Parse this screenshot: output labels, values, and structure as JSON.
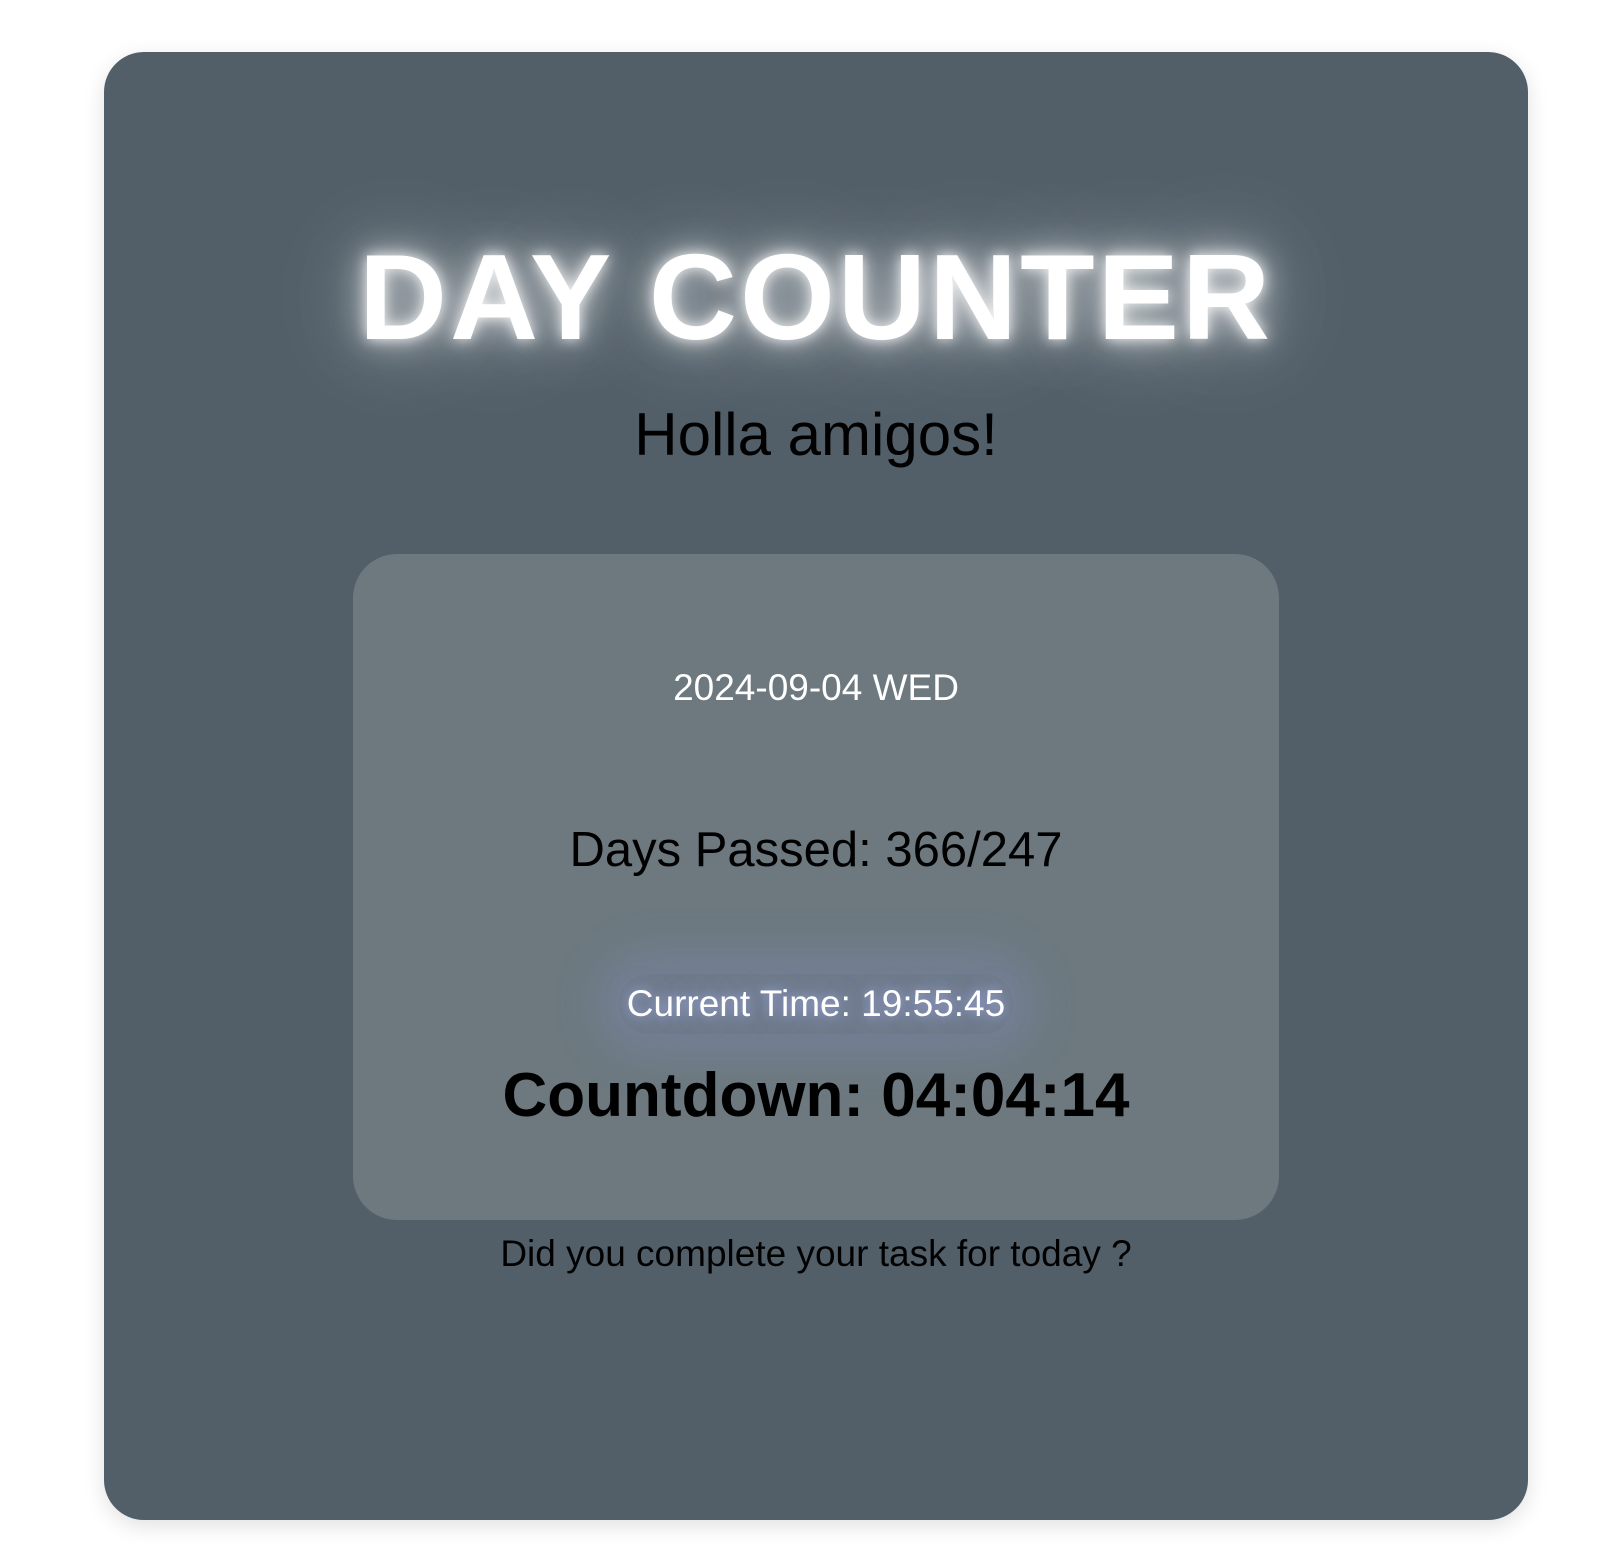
{
  "header": {
    "title": "DAY COUNTER",
    "greeting": "Holla amigos!"
  },
  "panel": {
    "date": "2024-09-04 WED",
    "days_passed": "Days Passed: 366/247",
    "current_time": "Current Time: 19:55:45",
    "countdown": "Countdown: 04:04:14"
  },
  "footer": {
    "question": "Did you complete your task for today ?"
  },
  "colors": {
    "page_background": "#ffffff",
    "card_background": "#525f69",
    "panel_background": "#6d797f",
    "title_text": "#ffffff",
    "body_text": "#000000"
  }
}
